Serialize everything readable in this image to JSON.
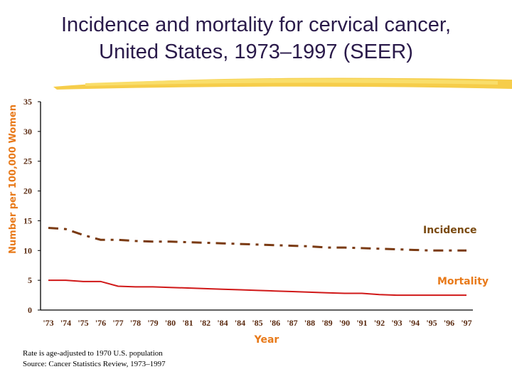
{
  "chart_data": {
    "type": "line",
    "title": "Incidence and mortality for cervical cancer,",
    "subtitle": "United States, 1973–1997 (SEER)",
    "xlabel": "Year",
    "ylabel": "Number per 100,000 Women",
    "ylim": [
      0,
      35
    ],
    "yticks": [
      0,
      5,
      10,
      15,
      20,
      25,
      30,
      35
    ],
    "categories": [
      "'73",
      "'74",
      "'75",
      "'76",
      "'77",
      "'78",
      "'79",
      "'80",
      "'81",
      "'82",
      "'84",
      "'84",
      "'85",
      "'86",
      "'87",
      "'88",
      "'89",
      "'90",
      "'91",
      "'92",
      "'93",
      "'94",
      "'95",
      "'96",
      "'97"
    ],
    "grid": false,
    "series": [
      {
        "name": "Incidence",
        "style": "dash-dot",
        "color": "#7a3a12",
        "values": [
          13.8,
          13.6,
          12.6,
          11.8,
          11.8,
          11.6,
          11.5,
          11.5,
          11.4,
          11.3,
          11.2,
          11.1,
          11.0,
          10.9,
          10.8,
          10.7,
          10.5,
          10.5,
          10.4,
          10.3,
          10.2,
          10.1,
          10.0,
          10.0,
          10.0
        ]
      },
      {
        "name": "Mortality",
        "style": "solid",
        "color": "#d01818",
        "values": [
          5.0,
          5.0,
          4.8,
          4.8,
          4.0,
          3.9,
          3.9,
          3.8,
          3.7,
          3.6,
          3.5,
          3.4,
          3.3,
          3.2,
          3.1,
          3.0,
          2.9,
          2.8,
          2.8,
          2.6,
          2.5,
          2.5,
          2.5,
          2.5,
          2.5
        ]
      }
    ],
    "label_colors": {
      "Incidence": "#7a4a10",
      "Mortality": "#e87a1a",
      "axis_title": "#e87a1a"
    }
  },
  "notes": [
    "Rate is age-adjusted to 1970 U.S. population",
    "Source: Cancer Statistics Review, 1973–1997"
  ]
}
